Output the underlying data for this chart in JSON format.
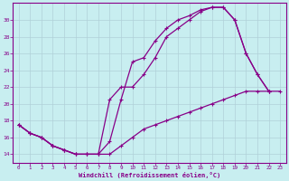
{
  "xlabel": "Windchill (Refroidissement éolien,°C)",
  "bg_color": "#c8eef0",
  "line_color": "#880088",
  "grid_color": "#b0d0d8",
  "xlim": [
    -0.5,
    23.5
  ],
  "ylim": [
    13.0,
    32.0
  ],
  "yticks": [
    14,
    16,
    18,
    20,
    22,
    24,
    26,
    28,
    30
  ],
  "xticks": [
    0,
    1,
    2,
    3,
    4,
    5,
    6,
    7,
    8,
    9,
    10,
    11,
    12,
    13,
    14,
    15,
    16,
    17,
    18,
    19,
    20,
    21,
    22,
    23
  ],
  "curve1_x": [
    0,
    1,
    2,
    3,
    4,
    5,
    6,
    7,
    8,
    9,
    10,
    11,
    12,
    13,
    14,
    15,
    16,
    17,
    18,
    19,
    20,
    21,
    22
  ],
  "curve1_y": [
    17.5,
    16.5,
    16.0,
    15.0,
    14.5,
    14.0,
    14.0,
    14.0,
    15.5,
    20.5,
    25.0,
    25.5,
    27.5,
    29.0,
    30.0,
    30.5,
    31.2,
    31.5,
    31.5,
    30.0,
    26.0,
    23.5,
    21.5
  ],
  "curve2_x": [
    0,
    1,
    2,
    3,
    4,
    5,
    6,
    7,
    8,
    9,
    10,
    11,
    12,
    13,
    14,
    15,
    16,
    17,
    18,
    19,
    20,
    21,
    22
  ],
  "curve2_y": [
    17.5,
    16.5,
    16.0,
    15.0,
    14.5,
    14.0,
    14.0,
    14.0,
    20.5,
    22.0,
    22.0,
    23.5,
    25.5,
    28.0,
    29.0,
    30.0,
    31.0,
    31.5,
    31.5,
    30.0,
    26.0,
    23.5,
    21.5
  ],
  "curve3_x": [
    0,
    1,
    2,
    3,
    4,
    5,
    6,
    7,
    8,
    9,
    10,
    11,
    12,
    13,
    14,
    15,
    16,
    17,
    18,
    19,
    20,
    21,
    22,
    23
  ],
  "curve3_y": [
    17.5,
    16.5,
    16.0,
    15.0,
    14.5,
    14.0,
    14.0,
    14.0,
    14.0,
    15.0,
    16.0,
    17.0,
    17.5,
    18.0,
    18.5,
    19.0,
    19.5,
    20.0,
    20.5,
    21.0,
    21.5,
    21.5,
    21.5,
    21.5
  ]
}
